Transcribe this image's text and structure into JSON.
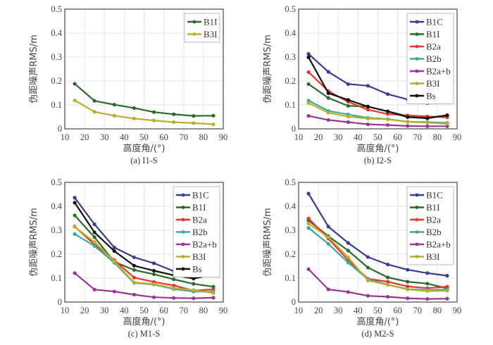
{
  "chart_data": [
    {
      "type": "line",
      "title": "",
      "caption": "(a) I1-S",
      "xlabel": "高度角/(°)",
      "ylabel": "伪距噪声RMS/m",
      "xlim": [
        10,
        90
      ],
      "ylim": [
        0,
        0.5
      ],
      "xticks": [
        "10",
        "20",
        "30",
        "40",
        "50",
        "60",
        "70",
        "80",
        "90"
      ],
      "yticks": [
        "0",
        "0.1",
        "0.2",
        "0.3",
        "0.4",
        "0.5"
      ],
      "grid": true,
      "legend_position": "top-right",
      "x": [
        15,
        25,
        35,
        45,
        55,
        65,
        75,
        85
      ],
      "series": [
        {
          "name": "B1I",
          "color": "#2a6b2a",
          "values": [
            0.188,
            0.117,
            0.101,
            0.087,
            0.07,
            0.061,
            0.054,
            0.055
          ]
        },
        {
          "name": "B3I",
          "color": "#b8b02c",
          "values": [
            0.119,
            0.071,
            0.055,
            0.043,
            0.035,
            0.028,
            0.024,
            0.019
          ]
        }
      ]
    },
    {
      "type": "line",
      "title": "",
      "caption": "(b) I2-S",
      "xlabel": "高度角/(°)",
      "ylabel": "伪距噪声RMS/m",
      "xlim": [
        10,
        90
      ],
      "ylim": [
        0,
        0.5
      ],
      "xticks": [
        "10",
        "20",
        "30",
        "40",
        "50",
        "60",
        "70",
        "80",
        "90"
      ],
      "yticks": [
        "0",
        "0.1",
        "0.2",
        "0.3",
        "0.4",
        "0.5"
      ],
      "grid": true,
      "legend_position": "top-right",
      "x": [
        15,
        25,
        35,
        45,
        55,
        65,
        75,
        85
      ],
      "series": [
        {
          "name": "B1C",
          "color": "#3b3b8f",
          "values": [
            0.313,
            0.238,
            0.187,
            0.18,
            0.145,
            0.123,
            0.108,
            0.118
          ]
        },
        {
          "name": "B1I",
          "color": "#2a6b2a",
          "values": [
            0.187,
            0.129,
            0.096,
            0.093,
            0.073,
            0.053,
            0.048,
            0.055
          ]
        },
        {
          "name": "B2a",
          "color": "#e8342c",
          "values": [
            0.237,
            0.158,
            0.113,
            0.08,
            0.062,
            0.056,
            0.052,
            0.048
          ]
        },
        {
          "name": "B2b",
          "color": "#3aaaa0",
          "values": [
            0.118,
            0.075,
            0.06,
            0.046,
            0.041,
            0.03,
            0.028,
            0.025
          ]
        },
        {
          "name": "B2a+b",
          "color": "#9b3595",
          "values": [
            0.054,
            0.037,
            0.028,
            0.019,
            0.016,
            0.012,
            0.011,
            0.011
          ]
        },
        {
          "name": "B3I",
          "color": "#b8b02c",
          "values": [
            0.108,
            0.067,
            0.051,
            0.043,
            0.04,
            0.029,
            0.026,
            0.021
          ]
        },
        {
          "name": "Bs",
          "color": "#111111",
          "values": [
            0.299,
            0.149,
            0.121,
            0.093,
            0.073,
            0.049,
            0.044,
            0.057
          ]
        }
      ]
    },
    {
      "type": "line",
      "title": "",
      "caption": "(c) M1-S",
      "xlabel": "高度角/(°)",
      "ylabel": "伪距噪声RMS/m",
      "xlim": [
        10,
        90
      ],
      "ylim": [
        0,
        0.5
      ],
      "xticks": [
        "10",
        "20",
        "30",
        "40",
        "50",
        "60",
        "70",
        "80",
        "90"
      ],
      "yticks": [
        "0",
        "0.1",
        "0.2",
        "0.3",
        "0.4",
        "0.5"
      ],
      "grid": true,
      "legend_position": "top-right",
      "x": [
        15,
        25,
        35,
        45,
        55,
        65,
        75,
        85
      ],
      "series": [
        {
          "name": "B1C",
          "color": "#3b3b8f",
          "values": [
            0.436,
            0.325,
            0.228,
            0.187,
            0.162,
            0.129,
            0.106,
            0.116
          ]
        },
        {
          "name": "B1I",
          "color": "#2a6b2a",
          "values": [
            0.362,
            0.271,
            0.168,
            0.134,
            0.116,
            0.095,
            0.076,
            0.064
          ]
        },
        {
          "name": "B2a",
          "color": "#e8342c",
          "values": [
            0.316,
            0.24,
            0.175,
            0.102,
            0.084,
            0.069,
            0.048,
            0.053
          ]
        },
        {
          "name": "B2b",
          "color": "#3aaaa0",
          "values": [
            0.284,
            0.234,
            0.164,
            0.08,
            0.073,
            0.054,
            0.044,
            0.043
          ]
        },
        {
          "name": "B2a+b",
          "color": "#9b3595",
          "values": [
            0.121,
            0.052,
            0.044,
            0.031,
            0.02,
            0.017,
            0.016,
            0.018
          ]
        },
        {
          "name": "B3I",
          "color": "#b8b02c",
          "values": [
            0.314,
            0.251,
            0.17,
            0.082,
            0.075,
            0.058,
            0.05,
            0.038
          ]
        },
        {
          "name": "Bs",
          "color": "#111111",
          "values": [
            0.415,
            0.291,
            0.213,
            0.152,
            0.131,
            0.112,
            0.098,
            0.114
          ]
        }
      ]
    },
    {
      "type": "line",
      "title": "",
      "caption": "(d) M2-S",
      "xlabel": "高度角/(°)",
      "ylabel": "伪距噪声RMS/m",
      "xlim": [
        10,
        90
      ],
      "ylim": [
        0,
        0.5
      ],
      "xticks": [
        "10",
        "20",
        "30",
        "40",
        "50",
        "60",
        "70",
        "80",
        "90"
      ],
      "yticks": [
        "0",
        "0.1",
        "0.2",
        "0.3",
        "0.4",
        "0.5"
      ],
      "grid": true,
      "legend_position": "top-right",
      "x": [
        15,
        25,
        35,
        45,
        55,
        65,
        75,
        85
      ],
      "series": [
        {
          "name": "B1C",
          "color": "#3b3b8f",
          "values": [
            0.453,
            0.315,
            0.247,
            0.188,
            0.157,
            0.135,
            0.121,
            0.11
          ]
        },
        {
          "name": "B1I",
          "color": "#2a6b2a",
          "values": [
            0.341,
            0.275,
            0.215,
            0.144,
            0.103,
            0.085,
            0.077,
            0.057
          ]
        },
        {
          "name": "B2a",
          "color": "#e8342c",
          "values": [
            0.349,
            0.265,
            0.175,
            0.097,
            0.085,
            0.065,
            0.058,
            0.064
          ]
        },
        {
          "name": "B2b",
          "color": "#3aaaa0",
          "values": [
            0.31,
            0.243,
            0.165,
            0.095,
            0.073,
            0.054,
            0.05,
            0.052
          ]
        },
        {
          "name": "B2a+b",
          "color": "#9b3595",
          "values": [
            0.137,
            0.053,
            0.042,
            0.026,
            0.022,
            0.016,
            0.013,
            0.014
          ]
        },
        {
          "name": "B3I",
          "color": "#b8b02c",
          "values": [
            0.328,
            0.271,
            0.187,
            0.09,
            0.072,
            0.053,
            0.046,
            0.047
          ]
        }
      ]
    }
  ]
}
